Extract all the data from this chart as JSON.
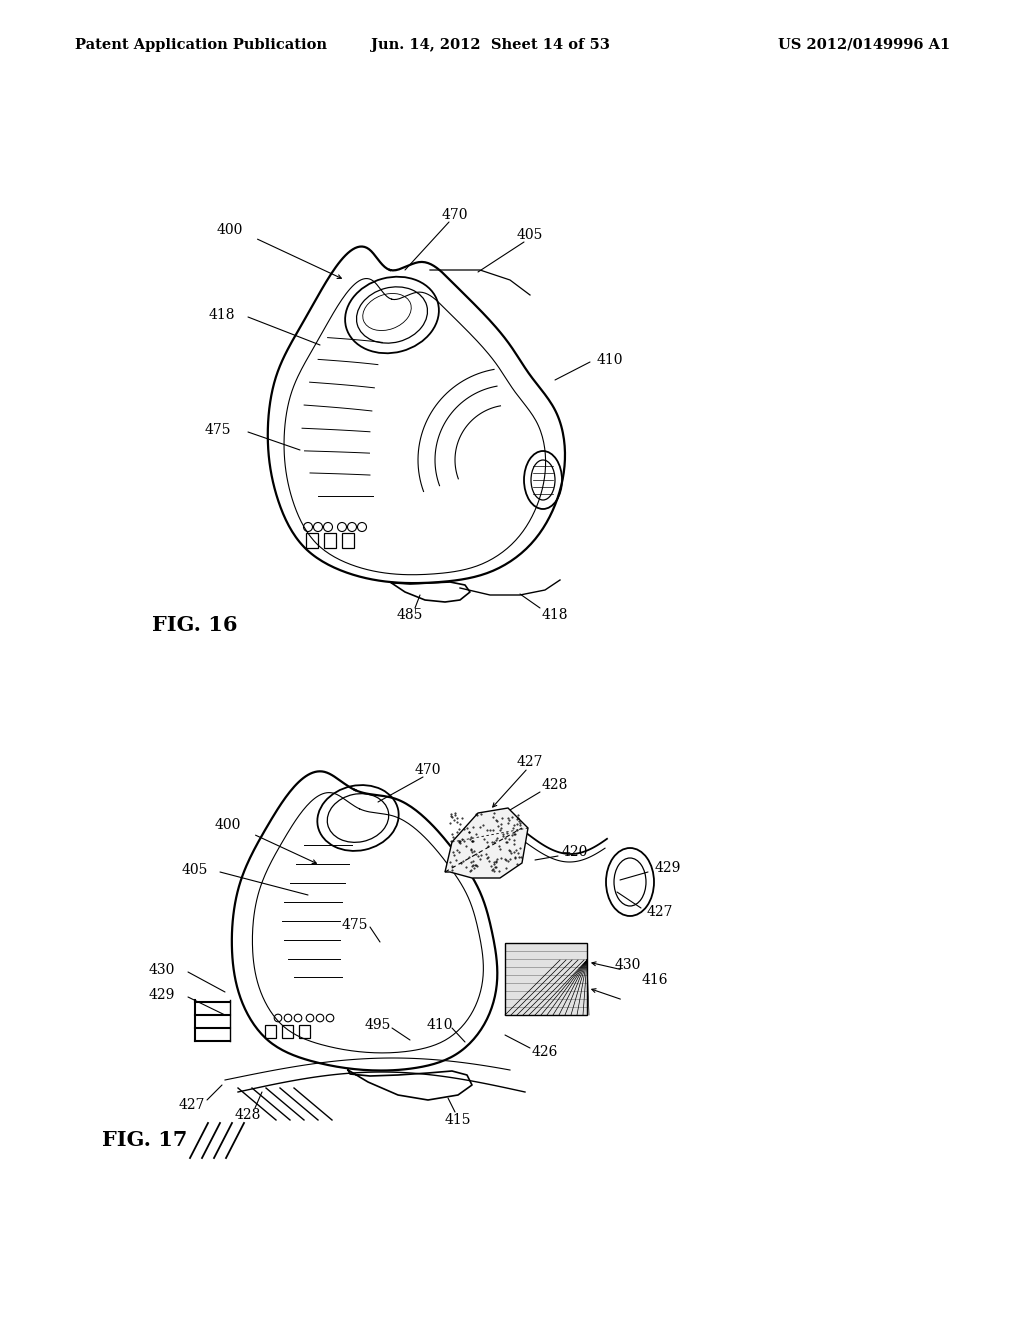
{
  "background_color": "#ffffff",
  "header_left": "Patent Application Publication",
  "header_mid": "Jun. 14, 2012  Sheet 14 of 53",
  "header_right": "US 2012/0149996 A1",
  "header_fontsize": 10.5,
  "fig_label_16": "FIG. 16",
  "fig_label_17": "FIG. 17",
  "label_fontsize": 10,
  "label_color": "#000000"
}
